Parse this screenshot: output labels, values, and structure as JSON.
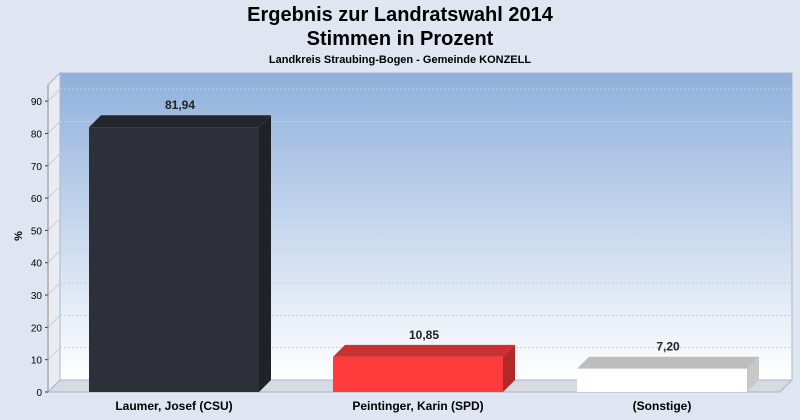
{
  "chart_data": {
    "type": "bar",
    "title": "Ergebnis zur Landratswahl 2014",
    "subtitle": "Stimmen in Prozent",
    "subsubtitle": "Landkreis Straubing-Bogen - Gemeinde KONZELL",
    "ylabel": "%",
    "xlabel": "",
    "ylim": [
      0,
      95
    ],
    "yticks": [
      0,
      10,
      20,
      30,
      40,
      50,
      60,
      70,
      80,
      90
    ],
    "categories": [
      "Laumer, Josef (CSU)",
      "Peintinger, Karin (SPD)",
      "(Sonstige)"
    ],
    "values": [
      81.94,
      10.85,
      7.2
    ],
    "value_labels": [
      "81,94",
      "10,85",
      "7,20"
    ],
    "colors": [
      "#2d3038",
      "#ff3b3b",
      "#ffffff"
    ],
    "grid": true
  }
}
